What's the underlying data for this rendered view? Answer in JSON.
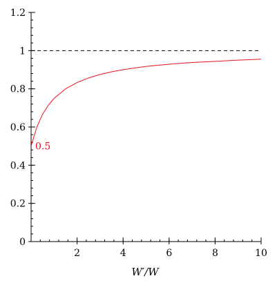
{
  "chart_data": {
    "type": "line",
    "title": "",
    "xlabel": "W′/W",
    "ylabel": "",
    "xlim": [
      0,
      10
    ],
    "ylim": [
      0,
      1.2
    ],
    "grid": false,
    "legend": "none",
    "xticks": [
      2,
      4,
      6,
      8,
      10
    ],
    "xtick_labels": [
      "2",
      "4",
      "6",
      "8",
      "10"
    ],
    "yticks": [
      0,
      0.2,
      0.4,
      0.6,
      0.8,
      1,
      1.2
    ],
    "ytick_labels": [
      "0",
      "0.2",
      "0.4",
      "0.6",
      "0.8",
      "1",
      "1.2"
    ],
    "series": [
      {
        "color": "#e8121f",
        "style": "solid",
        "x": [
          0,
          0.25,
          0.5,
          0.75,
          1,
          1.5,
          2,
          2.5,
          3,
          3.5,
          4,
          4.5,
          5,
          6,
          7,
          8,
          9,
          10
        ],
        "y": [
          0.5,
          0.6,
          0.667,
          0.714,
          0.75,
          0.8,
          0.833,
          0.857,
          0.875,
          0.889,
          0.9,
          0.909,
          0.917,
          0.929,
          0.938,
          0.944,
          0.95,
          0.955
        ]
      },
      {
        "color": "#000000",
        "style": "dashed",
        "x": [
          0,
          10
        ],
        "y": [
          1,
          1
        ]
      }
    ],
    "annotations": [
      {
        "text": "0.5",
        "x": 0,
        "y": 0.5,
        "color": "#e8121f"
      }
    ]
  }
}
